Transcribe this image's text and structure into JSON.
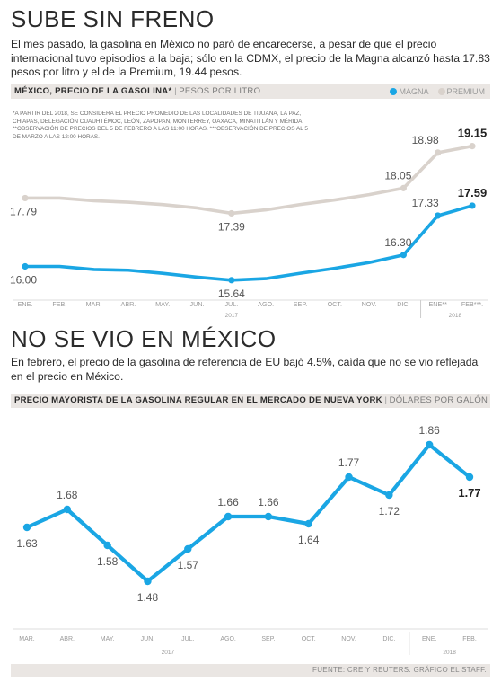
{
  "section1": {
    "title": "SUBE SIN FRENO",
    "intro": "El mes pasado, la gasolina en México no paró de encarecerse, a pesar de que el precio internacional tuvo episodios a la baja; sólo en la CDMX, el precio de la Magna alcanzó hasta 17.83 pesos por litro y el de la Premium, 19.44 pesos.",
    "bar_title": "MÉXICO, PRECIO DE LA GASOLINA*",
    "bar_sep": "|",
    "bar_unit": "PESOS POR LITRO",
    "note": "*A PARTIR DEL 2018, SE CONSIDERA EL PRECIO PROMEDIO DE LAS LOCALIDADES DE TIJUANA, LA PAZ, CHIAPAS, DELEGACIÓN CUAUHTÉMOC, LEÓN, ZAPOPAN, MONTERREY, OAXACA, MINATITLÁN Y MÉRIDA. **OBSERVACIÓN DE PRECIOS DEL 5 DE FEBRERO A LAS 11:00 HORAS. ***OBSERVACIÓN DE PRECIOS AL 5 DE MARZO A LAS 12:00 HORAS."
  },
  "section2": {
    "title": "NO SE VIO EN MÉXICO",
    "intro": "En febrero, el precio de la gasolina de referencia de EU bajó 4.5%, caída que no se vio reflejada en el precio en México.",
    "bar_title": "PRECIO MAYORISTA DE LA GASOLINA REGULAR EN EL MERCADO DE NUEVA YORK",
    "bar_sep": "|",
    "bar_unit": "DÓLARES POR GALÓN"
  },
  "footer": "FUENTE: CRE Y REUTERS.  GRÁFICO EL STAFF.",
  "colors": {
    "magna": "#1aa6e4",
    "premium": "#d9d2cc",
    "label": "#555555",
    "axis": "#999999"
  },
  "chart_data": [
    {
      "type": "line",
      "title": "MÉXICO, PRECIO DE LA GASOLINA*",
      "ylabel": "PESOS POR LITRO",
      "categories": [
        "ENE.",
        "FEB.",
        "MAR.",
        "ABR.",
        "MAY.",
        "JUN.",
        "JUL.",
        "AGO.",
        "SEP.",
        "OCT.",
        "NOV.",
        "DIC.",
        "ENE**",
        "FEB***."
      ],
      "year_labels": [
        "2017",
        "2018"
      ],
      "legend": "top-right",
      "series": [
        {
          "name": "MAGNA",
          "values": [
            16.0,
            16.0,
            15.92,
            15.9,
            15.82,
            15.72,
            15.64,
            15.68,
            15.82,
            15.95,
            16.1,
            16.3,
            17.33,
            17.59
          ],
          "labels": {
            "0": "16.00",
            "6": "15.64",
            "11": "16.30",
            "12": "17.33",
            "13": "17.59"
          }
        },
        {
          "name": "PREMIUM",
          "values": [
            17.79,
            17.79,
            17.72,
            17.68,
            17.62,
            17.53,
            17.39,
            17.48,
            17.62,
            17.74,
            17.88,
            18.05,
            18.98,
            19.15
          ],
          "labels": {
            "0": "17.79",
            "6": "17.39",
            "11": "18.05",
            "12": "18.98",
            "13": "19.15"
          }
        }
      ],
      "ylim": [
        15.4,
        19.4
      ]
    },
    {
      "type": "line",
      "title": "PRECIO MAYORISTA DE LA GASOLINA REGULAR EN EL MERCADO DE NUEVA YORK",
      "ylabel": "DÓLARES POR GALÓN",
      "categories": [
        "MAR.",
        "ABR.",
        "MAY.",
        "JUN.",
        "JUL.",
        "AGO.",
        "SEP.",
        "OCT.",
        "NOV.",
        "DIC.",
        "ENE.",
        "FEB."
      ],
      "year_labels": [
        "2017",
        "2018"
      ],
      "series": [
        {
          "values": [
            1.63,
            1.68,
            1.58,
            1.48,
            1.57,
            1.66,
            1.66,
            1.64,
            1.77,
            1.72,
            1.86,
            1.77
          ],
          "labels": [
            "1.63",
            "1.68",
            "1.58",
            "1.48",
            "1.57",
            "1.66",
            "1.66",
            "1.64",
            "1.77",
            "1.72",
            "1.86",
            "1.77"
          ]
        }
      ],
      "ylim": [
        1.44,
        1.9
      ]
    }
  ]
}
